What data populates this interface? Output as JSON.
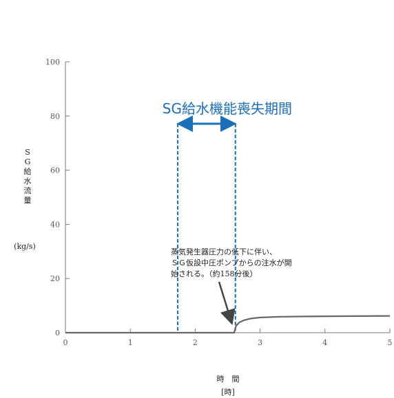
{
  "chart_data": {
    "type": "line",
    "ylabel_chars": [
      "S",
      "G",
      "給",
      "水",
      "流",
      "量"
    ],
    "yunit": "(kg/s)",
    "xlabel": "時　間",
    "xunit": "[時]",
    "xlim": [
      0,
      5
    ],
    "ylim": [
      0,
      100
    ],
    "x_ticks": [
      "0",
      "1",
      "2",
      "3",
      "4",
      "5"
    ],
    "y_ticks": [
      "0",
      "20",
      "40",
      "60",
      "80",
      "100"
    ],
    "series": [
      {
        "color": "#666666",
        "x": [
          0,
          2.6,
          2.63,
          2.68,
          2.75,
          2.85,
          3.0,
          3.3,
          3.7,
          4.2,
          5.0
        ],
        "y": [
          0,
          0,
          2.5,
          3.8,
          4.6,
          5.2,
          5.6,
          5.9,
          6.0,
          6.1,
          6.2
        ]
      }
    ],
    "annotations": {
      "period_label": "SG給水機能喪失期間",
      "period_start": 1.73,
      "period_end": 2.62,
      "period_color": "#1a6fb8",
      "note_lines": [
        "蒸気発生器圧力の低下に伴い、",
        "ＳＧ仮設中圧ポンプからの注水が開",
        "始される。（約158分後）"
      ],
      "arrow_target": {
        "x": 2.6,
        "y": 2.5
      }
    },
    "grid": false
  }
}
